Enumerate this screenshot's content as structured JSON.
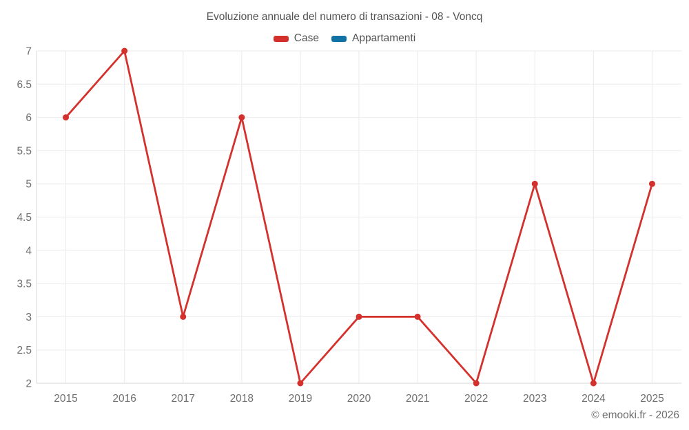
{
  "title": "Evoluzione annuale del numero di transazioni - 08 - Voncq",
  "watermark": "© emooki.fr - 2026",
  "legend": {
    "items": [
      {
        "label": "Case",
        "color": "#d4312d"
      },
      {
        "label": "Appartamenti",
        "color": "#1172a5"
      }
    ]
  },
  "axes": {
    "x_ticks": [
      "2015",
      "2016",
      "2017",
      "2018",
      "2019",
      "2020",
      "2021",
      "2022",
      "2023",
      "2024",
      "2025"
    ],
    "y_ticks": [
      "7",
      "6.5",
      "6",
      "5.5",
      "5",
      "4.5",
      "4",
      "3.5",
      "3",
      "2.5",
      "2"
    ]
  },
  "colors": {
    "background": "#ffffff",
    "grid": "#ebebeb",
    "axis_line": "#d9d9d9",
    "tick_label": "#6e6e6e",
    "title_text": "#525252",
    "legend_text": "#565656",
    "watermark_text": "#6d6d6d",
    "case_red": "#d4312d",
    "appartamenti_blue": "#1172a5"
  },
  "chart_data": {
    "type": "line",
    "title": "Evoluzione annuale del numero di transazioni - 08 - Voncq",
    "x": [
      2015,
      2016,
      2017,
      2018,
      2019,
      2020,
      2021,
      2022,
      2023,
      2024,
      2025
    ],
    "series": [
      {
        "name": "Case",
        "color": "#d4312d",
        "values": [
          6,
          7,
          3,
          6,
          2,
          3,
          3,
          2,
          5,
          2,
          5
        ]
      },
      {
        "name": "Appartamenti",
        "color": "#1172a5",
        "values": []
      }
    ],
    "xlabel": "",
    "ylabel": "",
    "ylim": [
      2,
      7
    ],
    "ytick_step": 0.5,
    "grid": true,
    "legend_position": "top",
    "point_style": "circle"
  }
}
